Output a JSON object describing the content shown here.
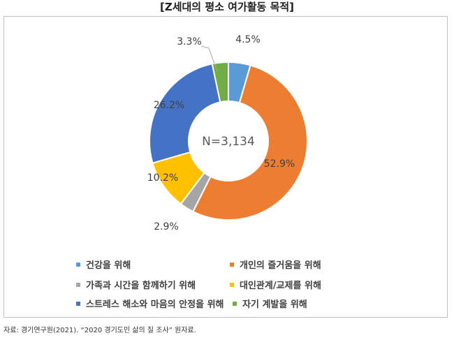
{
  "title": "[Z세대의 평소 여가활동 목적]",
  "source": "자료: 경기연구원(2021). “2020 경기도민 삶의 질 조사” 원자료.",
  "chart_data": {
    "type": "pie",
    "donut": true,
    "center_label": "N=3,134",
    "slices": [
      {
        "name": "건강을 위해",
        "value": 4.5,
        "label": "4.5%",
        "color": "#5b9bd5"
      },
      {
        "name": "개인의 즐거움을 위해",
        "value": 52.9,
        "label": "52.9%",
        "color": "#ed7d31"
      },
      {
        "name": "가족과 시간을 함께하기 위해",
        "value": 2.9,
        "label": "2.9%",
        "color": "#a5a5a5"
      },
      {
        "name": "대인관계/교제를 위해",
        "value": 10.2,
        "label": "10.2%",
        "color": "#ffc000"
      },
      {
        "name": "스트레스 해소와 마음의 안정을 위해",
        "value": 26.2,
        "label": "26.2%",
        "color": "#4472c4"
      },
      {
        "name": "자기 계발을 위해",
        "value": 3.3,
        "label": "3.3%",
        "color": "#70ad47"
      }
    ]
  }
}
